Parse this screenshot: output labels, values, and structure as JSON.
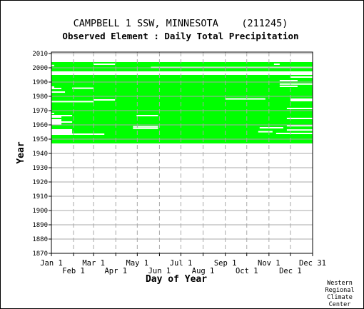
{
  "chart_data": {
    "type": "heatmap",
    "title": "CAMPBELL 1 SSW, MINNESOTA    (211245)",
    "subtitle": "Observed Element : Daily Total Precipitation",
    "xlabel": "Day of Year",
    "ylabel": "Year",
    "x_ticks_upper": [
      "Jan 1",
      "Mar 1",
      "May 1",
      "Jul 1",
      "Sep 1",
      "Nov 1",
      "Dec 31"
    ],
    "x_ticks_lower": [
      "Feb 1",
      "Apr 1",
      "Jun 1",
      "Aug 1",
      "Oct 1",
      "Dec 1"
    ],
    "x_tick_days": [
      1,
      32,
      60,
      91,
      121,
      152,
      182,
      213,
      244,
      274,
      305,
      335,
      366
    ],
    "y_ticks": [
      2010,
      2000,
      1990,
      1980,
      1970,
      1960,
      1950,
      1940,
      1930,
      1920,
      1910,
      1900,
      1890,
      1880,
      1870
    ],
    "xlim": [
      1,
      366
    ],
    "ylim": [
      1870,
      2011
    ],
    "grid": true,
    "color_observed": "#00ff00",
    "coverage": [
      {
        "years": [
          1947,
          1953
        ],
        "days": [
          1,
          366
        ]
      },
      {
        "years": [
          1953,
          1957
        ],
        "days": [
          30,
          366
        ]
      },
      {
        "years": [
          1957,
          1960
        ],
        "days": [
          1,
          366
        ]
      },
      {
        "years": [
          1960,
          1964
        ],
        "days": [
          15,
          366
        ]
      },
      {
        "years": [
          1964,
          1971
        ],
        "days": [
          1,
          366
        ]
      },
      {
        "years": [
          1971,
          1975
        ],
        "days": [
          1,
          366
        ]
      },
      {
        "years": [
          1975,
          1981
        ],
        "days": [
          1,
          366
        ]
      },
      {
        "years": [
          1981,
          1984
        ],
        "days": [
          1,
          366
        ]
      },
      {
        "years": [
          1984,
          1990
        ],
        "days": [
          1,
          366
        ]
      },
      {
        "years": [
          1990,
          1995
        ],
        "days": [
          1,
          366
        ]
      },
      {
        "years": [
          1997,
          1999
        ],
        "days": [
          1,
          366
        ]
      },
      {
        "years": [
          1999,
          2002
        ],
        "days": [
          1,
          366
        ]
      },
      {
        "years": [
          2002,
          2004
        ],
        "days": [
          1,
          366
        ]
      }
    ],
    "gaps": [
      {
        "year": 1953.5,
        "days": [
          15,
          75
        ]
      },
      {
        "year": 1954.0,
        "days": [
          315,
          366
        ]
      },
      {
        "year": 1955.2,
        "days": [
          290,
          310
        ]
      },
      {
        "year": 1956.4,
        "days": [
          330,
          366
        ]
      },
      {
        "year": 1957.6,
        "days": [
          115,
          150
        ]
      },
      {
        "year": 1958.7,
        "days": [
          115,
          150
        ]
      },
      {
        "year": 1958.0,
        "days": [
          292,
          325
        ]
      },
      {
        "year": 1959.4,
        "days": [
          330,
          366
        ]
      },
      {
        "year": 1961.0,
        "days": [
          1,
          15
        ]
      },
      {
        "year": 1962.0,
        "days": [
          1,
          30
        ]
      },
      {
        "year": 1964.5,
        "days": [
          330,
          366
        ]
      },
      {
        "year": 1965.5,
        "days": [
          1,
          15
        ]
      },
      {
        "year": 1966.5,
        "days": [
          1,
          30
        ]
      },
      {
        "year": 1966.5,
        "days": [
          120,
          150
        ]
      },
      {
        "year": 1968.0,
        "days": [
          1,
          5
        ]
      },
      {
        "year": 1971.5,
        "days": [
          330,
          366
        ]
      },
      {
        "year": 1976.3,
        "days": [
          1,
          60
        ]
      },
      {
        "year": 1977.0,
        "days": [
          335,
          366
        ]
      },
      {
        "year": 1977.5,
        "days": [
          60,
          90
        ]
      },
      {
        "year": 1978.2,
        "days": [
          244,
          300
        ]
      },
      {
        "year": 1978.0,
        "days": [
          335,
          366
        ]
      },
      {
        "year": 1983.0,
        "days": [
          1,
          20
        ]
      },
      {
        "year": 1985.5,
        "days": [
          1,
          15
        ]
      },
      {
        "year": 1985.7,
        "days": [
          30,
          60
        ]
      },
      {
        "year": 1986.5,
        "days": [
          1,
          5
        ]
      },
      {
        "year": 1987.0,
        "days": [
          320,
          345
        ]
      },
      {
        "year": 1988.6,
        "days": [
          320,
          366
        ]
      },
      {
        "year": 1991.0,
        "days": [
          320,
          345
        ]
      },
      {
        "year": 1993.5,
        "days": [
          335,
          366
        ]
      },
      {
        "year": 1996.0,
        "days": [
          1,
          366
        ]
      },
      {
        "year": 1997.0,
        "days": [
          1,
          366
        ]
      },
      {
        "year": 2000.2,
        "days": [
          140,
          366
        ]
      },
      {
        "year": 2001.6,
        "days": [
          1,
          5
        ]
      },
      {
        "year": 2002.5,
        "days": [
          60,
          90
        ]
      },
      {
        "year": 2002.5,
        "days": [
          312,
          320
        ]
      }
    ]
  },
  "credit": [
    "Western",
    "Regional",
    "Climate",
    "Center"
  ]
}
